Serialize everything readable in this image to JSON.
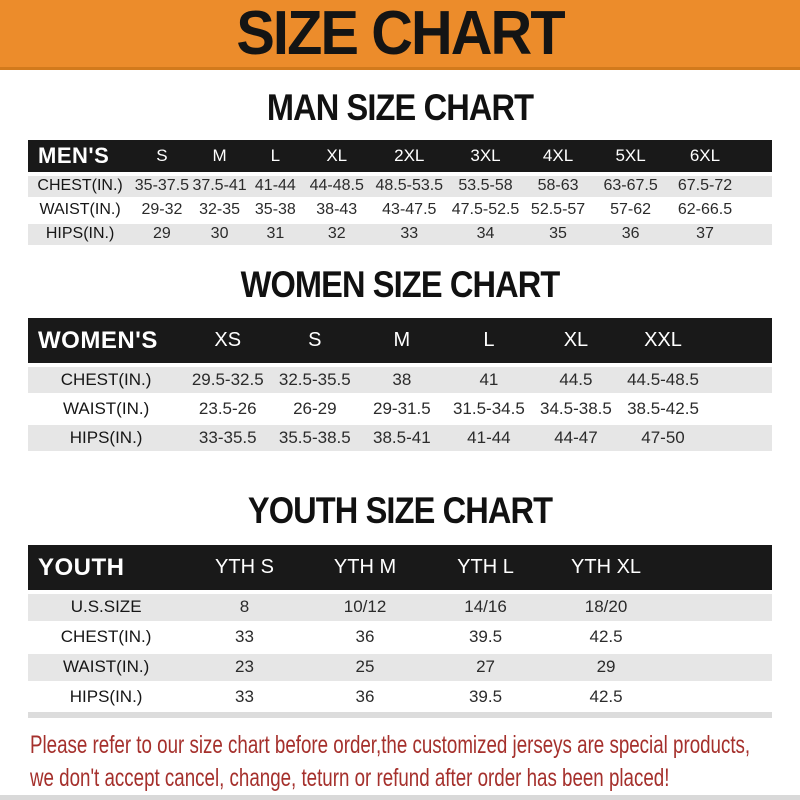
{
  "header": {
    "title": "SIZE CHART"
  },
  "colors": {
    "banner": "#ec8c2b",
    "bar": "#191919",
    "stripe": "#e6e6e6",
    "note": "#a5302c"
  },
  "sections": [
    {
      "title": "MAN SIZE CHART",
      "label": "MEN'S",
      "sizes": [
        "S",
        "M",
        "L",
        "XL",
        "2XL",
        "3XL",
        "4XL",
        "5XL",
        "6XL"
      ],
      "rows": [
        {
          "label": "CHEST(IN.)",
          "values": [
            "35-37.5",
            "37.5-41",
            "41-44",
            "44-48.5",
            "48.5-53.5",
            "53.5-58",
            "58-63",
            "63-67.5",
            "67.5-72"
          ]
        },
        {
          "label": "WAIST(IN.)",
          "values": [
            "29-32",
            "32-35",
            "35-38",
            "38-43",
            "43-47.5",
            "47.5-52.5",
            "52.5-57",
            "57-62",
            "62-66.5"
          ]
        },
        {
          "label": "HIPS(IN.)",
          "values": [
            "29",
            "30",
            "31",
            "32",
            "33",
            "34",
            "35",
            "36",
            "37"
          ]
        }
      ]
    },
    {
      "title": "WOMEN SIZE CHART",
      "label": "WOMEN'S",
      "sizes": [
        "XS",
        "S",
        "M",
        "L",
        "XL",
        "XXL"
      ],
      "rows": [
        {
          "label": "CHEST(IN.)",
          "values": [
            "29.5-32.5",
            "32.5-35.5",
            "38",
            "41",
            "44.5",
            "44.5-48.5"
          ]
        },
        {
          "label": "WAIST(IN.)",
          "values": [
            "23.5-26",
            "26-29",
            "29-31.5",
            "31.5-34.5",
            "34.5-38.5",
            "38.5-42.5"
          ]
        },
        {
          "label": "HIPS(IN.)",
          "values": [
            "33-35.5",
            "35.5-38.5",
            "38.5-41",
            "41-44",
            "44-47",
            "47-50"
          ]
        }
      ]
    },
    {
      "title": "YOUTH SIZE CHART",
      "label": "YOUTH",
      "sizes": [
        "YTH S",
        "YTH M",
        "YTH L",
        "YTH XL"
      ],
      "rows": [
        {
          "label": "U.S.SIZE",
          "values": [
            "8",
            "10/12",
            "14/16",
            "18/20"
          ]
        },
        {
          "label": "CHEST(IN.)",
          "values": [
            "33",
            "36",
            "39.5",
            "42.5"
          ]
        },
        {
          "label": "WAIST(IN.)",
          "values": [
            "23",
            "25",
            "27",
            "29"
          ]
        },
        {
          "label": "HIPS(IN.)",
          "values": [
            "33",
            "36",
            "39.5",
            "42.5"
          ]
        }
      ]
    }
  ],
  "footer": {
    "line1": "Please refer to our size chart before order,the customized jerseys are special products,",
    "line2": "we don't accept cancel, change, teturn or refund after order has been placed!"
  }
}
